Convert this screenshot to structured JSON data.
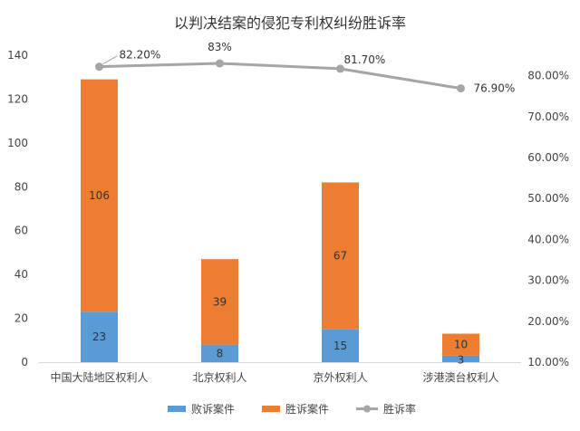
{
  "chart_data": {
    "type": "bar",
    "title": "以判决结案的侵犯专利权纠纷胜诉率",
    "categories": [
      "中国大陆地区权利人",
      "北京权利人",
      "京外权利人",
      "涉港澳台权利人"
    ],
    "series": [
      {
        "name": "败诉案件",
        "type": "bar",
        "stack": "cases",
        "color": "#5B9BD5",
        "values": [
          23,
          8,
          15,
          3
        ],
        "labels": [
          "23",
          "8",
          "15",
          "3"
        ]
      },
      {
        "name": "胜诉案件",
        "type": "bar",
        "stack": "cases",
        "color": "#ED7D31",
        "values": [
          106,
          39,
          67,
          10
        ],
        "labels": [
          "106",
          "39",
          "67",
          "10"
        ]
      },
      {
        "name": "胜诉率",
        "type": "line",
        "axis": "right",
        "color": "#A5A5A5",
        "values": [
          0.822,
          0.83,
          0.817,
          0.769
        ],
        "labels": [
          "82.20%",
          "83%",
          "81.70%",
          "76.90%"
        ]
      }
    ],
    "y_left": {
      "range": [
        0,
        140
      ],
      "ticks": [
        "0",
        "20",
        "40",
        "60",
        "80",
        "100",
        "120",
        "140"
      ]
    },
    "y_right": {
      "range": [
        0.1,
        0.85
      ],
      "ticks": [
        "10.00%",
        "20.00%",
        "30.00%",
        "40.00%",
        "50.00%",
        "60.00%",
        "70.00%",
        "80.00%"
      ]
    },
    "grid": false,
    "legend": "bottom"
  }
}
